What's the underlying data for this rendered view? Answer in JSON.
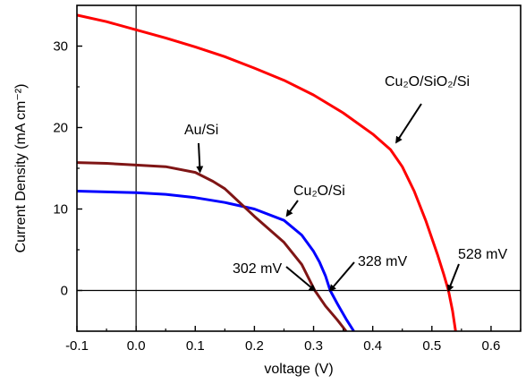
{
  "chart_data": {
    "type": "line",
    "xlabel": "voltage (V)",
    "ylabel": "Current Density (mA cm⁻²)",
    "xlim": [
      -0.1,
      0.65
    ],
    "ylim": [
      -5,
      35
    ],
    "x_ticks": [
      -0.1,
      0.0,
      0.1,
      0.2,
      0.3,
      0.4,
      0.5,
      0.6
    ],
    "x_tick_labels": [
      "-0.1",
      "0.0",
      "0.1",
      "0.2",
      "0.3",
      "0.4",
      "0.5",
      "0.6"
    ],
    "y_ticks": [
      0,
      10,
      20,
      30
    ],
    "y_tick_labels": [
      "0",
      "10",
      "20",
      "30"
    ],
    "reference_lines": {
      "horizontal_y": 0,
      "vertical_x": 0
    },
    "grid": false,
    "legend": "none",
    "series": [
      {
        "name": "Cu2O/SiO2/Si",
        "color": "#ff0000",
        "points": [
          [
            -0.1,
            33.8
          ],
          [
            -0.05,
            33.0
          ],
          [
            0.0,
            32.0
          ],
          [
            0.05,
            31.0
          ],
          [
            0.1,
            29.9
          ],
          [
            0.15,
            28.7
          ],
          [
            0.2,
            27.3
          ],
          [
            0.25,
            25.8
          ],
          [
            0.3,
            24.0
          ],
          [
            0.35,
            21.8
          ],
          [
            0.4,
            19.2
          ],
          [
            0.43,
            17.3
          ],
          [
            0.45,
            15.2
          ],
          [
            0.47,
            12.2
          ],
          [
            0.49,
            8.5
          ],
          [
            0.51,
            4.3
          ],
          [
            0.52,
            2.0
          ],
          [
            0.528,
            0.0
          ],
          [
            0.535,
            -2.5
          ],
          [
            0.54,
            -5.0
          ]
        ]
      },
      {
        "name": "Cu2O/Si",
        "color": "#0000ff",
        "points": [
          [
            -0.1,
            12.2
          ],
          [
            -0.05,
            12.1
          ],
          [
            0.0,
            12.0
          ],
          [
            0.05,
            11.8
          ],
          [
            0.1,
            11.4
          ],
          [
            0.15,
            10.8
          ],
          [
            0.2,
            10.0
          ],
          [
            0.25,
            8.6
          ],
          [
            0.28,
            6.8
          ],
          [
            0.3,
            4.8
          ],
          [
            0.31,
            3.5
          ],
          [
            0.32,
            1.8
          ],
          [
            0.328,
            0.0
          ],
          [
            0.34,
            -1.6
          ],
          [
            0.355,
            -3.5
          ],
          [
            0.368,
            -5.0
          ]
        ]
      },
      {
        "name": "Au/Si",
        "color": "#7f1515",
        "points": [
          [
            -0.1,
            15.7
          ],
          [
            -0.05,
            15.6
          ],
          [
            0.0,
            15.4
          ],
          [
            0.05,
            15.2
          ],
          [
            0.1,
            14.5
          ],
          [
            0.13,
            13.4
          ],
          [
            0.15,
            12.5
          ],
          [
            0.2,
            9.1
          ],
          [
            0.25,
            5.9
          ],
          [
            0.28,
            3.2
          ],
          [
            0.302,
            0.0
          ],
          [
            0.32,
            -1.9
          ],
          [
            0.34,
            -3.6
          ],
          [
            0.355,
            -5.0
          ]
        ]
      }
    ],
    "annotations": [
      {
        "text": "Cu₂O/SiO₂/Si",
        "target": [
          0.44,
          18.2
        ]
      },
      {
        "text": "Au/Si",
        "target": [
          0.108,
          14.6
        ]
      },
      {
        "text": "Cu₂O/Si",
        "target": [
          0.255,
          9.2
        ]
      },
      {
        "text": "302 mV",
        "target": [
          0.302,
          0.0
        ]
      },
      {
        "text": "328 mV",
        "target": [
          0.328,
          0.0
        ]
      },
      {
        "text": "528 mV",
        "target": [
          0.528,
          0.0
        ]
      }
    ]
  }
}
